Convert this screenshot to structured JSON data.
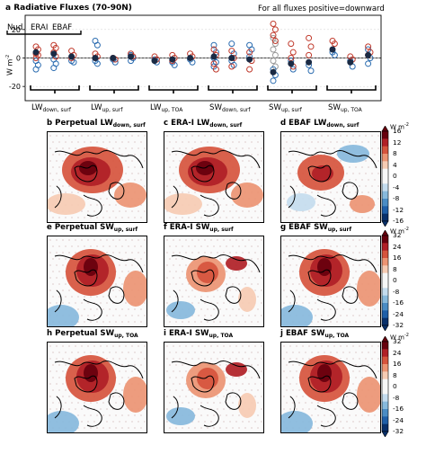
{
  "panel_a": {
    "title": "a Radiative Fluxes (70-90N)",
    "note": "For all fluxes positive=downward",
    "ylabel": "W m",
    "ylabel_sup": "-2",
    "legend": [
      "Nud",
      "ERAI",
      "EBAF"
    ]
  },
  "chart_data": {
    "type": "scatter",
    "ylim": [
      -30,
      30
    ],
    "yticks": [
      20,
      0,
      -20
    ],
    "categories": [
      {
        "main": "LW",
        "sub": "down, surf"
      },
      {
        "main": "LW",
        "sub": "up, surf"
      },
      {
        "main": "LW",
        "sub": "up, TOA"
      },
      {
        "main": "SW",
        "sub": "down, surf"
      },
      {
        "main": "SW",
        "sub": "up, surf"
      },
      {
        "main": "SW",
        "sub": "up, TOA"
      }
    ],
    "series_colors": {
      "red": "#c0392b",
      "blue": "#2b6cb0",
      "gray": "#9a9a9a",
      "dark": "#1a2a44"
    },
    "columns": [
      {
        "cat": 0,
        "sub": 0,
        "red": [
          8,
          6,
          3,
          2,
          0
        ],
        "blue": [
          -2,
          -5,
          -8
        ],
        "dark": [
          4
        ]
      },
      {
        "cat": 0,
        "sub": 1,
        "red": [
          9,
          7,
          4,
          1
        ],
        "blue": [
          -1,
          -4,
          -7
        ],
        "dark": [
          3
        ]
      },
      {
        "cat": 0,
        "sub": 2,
        "red": [
          5,
          2,
          0
        ],
        "blue": [
          -2,
          -3
        ],
        "dark": [
          1
        ]
      },
      {
        "cat": 1,
        "sub": 0,
        "red": [
          3,
          1,
          0
        ],
        "blue": [
          12,
          9,
          -2,
          -4
        ],
        "dark": [
          0
        ]
      },
      {
        "cat": 1,
        "sub": 1,
        "red": [
          0,
          -1
        ],
        "blue": [
          -1,
          -3
        ],
        "dark": [
          0
        ]
      },
      {
        "cat": 1,
        "sub": 2,
        "red": [
          3,
          1
        ],
        "blue": [
          2,
          0,
          -2
        ],
        "dark": [
          1
        ]
      },
      {
        "cat": 2,
        "sub": 0,
        "red": [
          1,
          -1
        ],
        "blue": [
          -1,
          -3
        ],
        "dark": [
          -2
        ]
      },
      {
        "cat": 2,
        "sub": 1,
        "red": [
          2,
          0,
          -2
        ],
        "blue": [
          -3,
          -5
        ],
        "dark": [
          -1
        ]
      },
      {
        "cat": 2,
        "sub": 2,
        "red": [
          3,
          1
        ],
        "blue": [
          -1,
          -3
        ],
        "dark": [
          0
        ]
      },
      {
        "cat": 3,
        "sub": 0,
        "red": [
          6,
          2,
          -4,
          -8
        ],
        "blue": [
          9,
          4,
          0,
          -3,
          -6
        ],
        "dark": [
          1
        ]
      },
      {
        "cat": 3,
        "sub": 1,
        "red": [
          5,
          0,
          -6
        ],
        "blue": [
          10,
          3,
          -2,
          -5
        ],
        "dark": [
          0
        ]
      },
      {
        "cat": 3,
        "sub": 2,
        "red": [
          4,
          -2,
          -8
        ],
        "blue": [
          9,
          6,
          1
        ],
        "dark": [
          -1
        ]
      },
      {
        "cat": 4,
        "sub": 0,
        "red": [
          24,
          20,
          16,
          12
        ],
        "blue": [
          -8,
          -12,
          -16
        ],
        "gray": [
          14,
          10,
          6,
          2,
          -2,
          -6
        ],
        "dark": [
          -10
        ]
      },
      {
        "cat": 4,
        "sub": 1,
        "red": [
          10,
          4,
          0,
          -6
        ],
        "blue": [
          -2,
          -8
        ],
        "dark": [
          -4
        ]
      },
      {
        "cat": 4,
        "sub": 2,
        "red": [
          14,
          8,
          2
        ],
        "blue": [
          -5,
          -9
        ],
        "dark": [
          -3
        ]
      },
      {
        "cat": 5,
        "sub": 0,
        "red": [
          12,
          10
        ],
        "blue": [
          4,
          2
        ],
        "dark": [
          6
        ]
      },
      {
        "cat": 5,
        "sub": 1,
        "red": [
          1,
          -1
        ],
        "blue": [
          -2,
          -6
        ],
        "dark": [
          -3
        ]
      },
      {
        "cat": 5,
        "sub": 2,
        "red": [
          8,
          4,
          2
        ],
        "blue": [
          6,
          0,
          -4
        ],
        "dark": [
          2
        ]
      }
    ]
  },
  "maps": [
    {
      "id": "b",
      "title_prefix": "b Perpetual ",
      "var_main": "LW",
      "var_sub": "down, surf",
      "scheme": "lw"
    },
    {
      "id": "c",
      "title_prefix": "c ERA-I ",
      "var_main": "LW",
      "var_sub": "down, surf",
      "scheme": "lw"
    },
    {
      "id": "d",
      "title_prefix": "d EBAF ",
      "var_main": "LW",
      "var_sub": "down, surf",
      "scheme": "lwmix"
    },
    {
      "id": "e",
      "title_prefix": "e Perpetual ",
      "var_main": "SW",
      "var_sub": "up, surf",
      "scheme": "sw"
    },
    {
      "id": "f",
      "title_prefix": "f ERA-I ",
      "var_main": "SW",
      "var_sub": "up, surf",
      "scheme": "sw2"
    },
    {
      "id": "g",
      "title_prefix": "g EBAF ",
      "var_main": "SW",
      "var_sub": "up, surf",
      "scheme": "sw"
    },
    {
      "id": "h",
      "title_prefix": "h Perpetual ",
      "var_main": "SW",
      "var_sub": "up, TOA",
      "scheme": "sw"
    },
    {
      "id": "i",
      "title_prefix": "i ERA-I ",
      "var_main": "SW",
      "var_sub": "up, TOA",
      "scheme": "sw2"
    },
    {
      "id": "j",
      "title_prefix": "j EBAF ",
      "var_main": "SW",
      "var_sub": "up, TOA",
      "scheme": "sw"
    }
  ],
  "colorbars": [
    {
      "unit": "W m",
      "unit_sup": "-2",
      "ticks": [
        "16",
        "12",
        "8",
        "4",
        "0",
        "-4",
        "-8",
        "-12",
        "-16"
      ]
    },
    {
      "unit": "W m",
      "unit_sup": "-2",
      "ticks": [
        "32",
        "24",
        "16",
        "8",
        "0",
        "-8",
        "-16",
        "-24",
        "-32"
      ]
    },
    {
      "unit": "W m",
      "unit_sup": "-2",
      "ticks": [
        "32",
        "24",
        "16",
        "8",
        "0",
        "-8",
        "-16",
        "-24",
        "-32"
      ]
    }
  ],
  "colormap": [
    "#08306b",
    "#1f5fa8",
    "#4a8cc4",
    "#87b9dc",
    "#c4dcee",
    "#f7f7f7",
    "#f7f7f7",
    "#f6cbb3",
    "#ec9473",
    "#d6543d",
    "#b01f26",
    "#67000d"
  ]
}
